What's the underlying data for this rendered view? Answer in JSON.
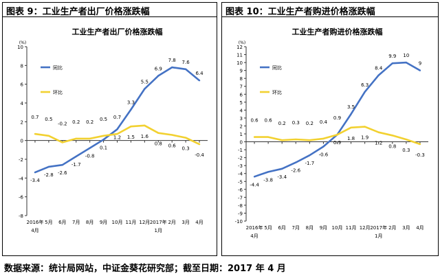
{
  "headers": {
    "left": "图表 9：工业生产者出厂价格涨跌幅",
    "right": "图表 10：工业生产者购进价格涨跌幅"
  },
  "source_note": "数据来源：统计局网站，中证金葵花研究部；截至日期：2017 年 4 月",
  "chart_data": [
    {
      "type": "line",
      "title": "工业生产者出厂价格涨跌幅",
      "unit": "(%)",
      "x_labels": [
        "2016年",
        "5月",
        "6月",
        "7月",
        "8月",
        "9月",
        "10月",
        "11月",
        "12月",
        "2017年",
        "2月",
        "3月",
        "4月"
      ],
      "x_sublabels": {
        "0": "4月",
        "9": "1月"
      },
      "ylim": [
        -8,
        10
      ],
      "yticks": [
        -8,
        -6,
        -4,
        -2,
        0,
        2,
        4,
        6,
        8,
        10
      ],
      "series": [
        {
          "name": "同比",
          "color": "#4472C4",
          "values": [
            -3.4,
            -2.8,
            -2.6,
            -1.7,
            -0.8,
            0.1,
            1.2,
            3.3,
            5.5,
            6.9,
            7.8,
            7.6,
            6.4
          ]
        },
        {
          "name": "环比",
          "color": "#F2D130",
          "values": [
            0.7,
            0.5,
            -0.2,
            0.2,
            0.2,
            0.5,
            0.7,
            1.5,
            1.6,
            0.8,
            0.6,
            0.3,
            -0.4
          ]
        }
      ],
      "legend": "upper-left"
    },
    {
      "type": "line",
      "title": "工业生产者购进价格涨跌幅",
      "unit": "(%)",
      "x_labels": [
        "2016年",
        "5月",
        "6月",
        "7月",
        "8月",
        "9月",
        "10月",
        "11月",
        "12月",
        "2017年",
        "2月",
        "3月",
        "4月"
      ],
      "x_sublabels": {
        "0": "4月",
        "9": "1月"
      },
      "ylim": [
        -10,
        12
      ],
      "yticks": [
        -10,
        -9,
        -8,
        -7,
        -6,
        -5,
        -4,
        -3,
        -2,
        -1,
        0,
        1,
        2,
        3,
        4,
        5,
        6,
        7,
        8,
        9,
        10,
        11,
        12
      ],
      "series": [
        {
          "name": "同比",
          "color": "#4472C4",
          "values": [
            -4.4,
            -3.8,
            -3.4,
            -2.6,
            -1.7,
            -0.6,
            0.9,
            3.5,
            6.3,
            8.4,
            9.9,
            10.0,
            9.0
          ]
        },
        {
          "name": "环比",
          "color": "#F2D130",
          "values": [
            0.6,
            0.6,
            0.2,
            0.3,
            0.2,
            0.4,
            0.9,
            1.8,
            1.9,
            1.2,
            0.8,
            0.3,
            -0.3
          ]
        }
      ],
      "legend": "upper-left"
    }
  ]
}
